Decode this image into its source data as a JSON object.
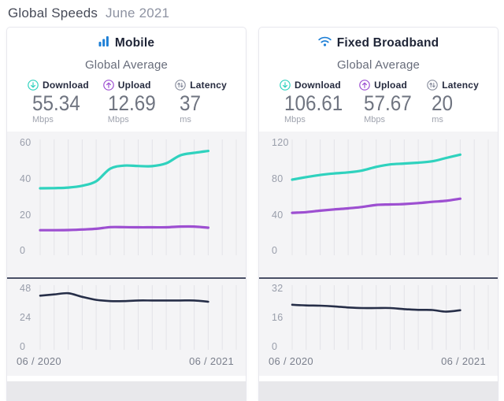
{
  "page": {
    "title": "Global Speeds",
    "subtitle": "June 2021"
  },
  "colors": {
    "brand_blue": "#1d7fd6",
    "download_teal": "#2fd2be",
    "upload_purple": "#9d4fd1",
    "latency_navy": "#262e48",
    "grid": "#e3e3e8",
    "chart_bg": "#f4f4f6",
    "divider": "#4a5066"
  },
  "cards": [
    {
      "title": "Mobile",
      "icon": "signal-bars-icon",
      "section_title": "Global Average",
      "stats": [
        {
          "icon": "download-arrow-icon",
          "label": "Download",
          "value": "55.34",
          "unit": "Mbps",
          "color": "#2fd2be"
        },
        {
          "icon": "upload-arrow-icon",
          "label": "Upload",
          "value": "12.69",
          "unit": "Mbps",
          "color": "#9d4fd1"
        },
        {
          "icon": "latency-arrows-icon",
          "label": "Latency",
          "value": "37",
          "unit": "ms",
          "color": "#8b90a0"
        }
      ],
      "x_axis": {
        "start": "06 / 2020",
        "end": "06 / 2021"
      }
    },
    {
      "title": "Fixed Broadband",
      "icon": "wifi-icon",
      "section_title": "Global Average",
      "stats": [
        {
          "icon": "download-arrow-icon",
          "label": "Download",
          "value": "106.61",
          "unit": "Mbps",
          "color": "#2fd2be"
        },
        {
          "icon": "upload-arrow-icon",
          "label": "Upload",
          "value": "57.67",
          "unit": "Mbps",
          "color": "#9d4fd1"
        },
        {
          "icon": "latency-arrows-icon",
          "label": "Latency",
          "value": "20",
          "unit": "ms",
          "color": "#8b90a0"
        }
      ],
      "x_axis": {
        "start": "06 / 2020",
        "end": "06 / 2021"
      }
    }
  ],
  "chart_data": [
    {
      "id": "mobile-speeds",
      "type": "line",
      "x": [
        "2020-06",
        "2020-07",
        "2020-08",
        "2020-09",
        "2020-10",
        "2020-11",
        "2020-12",
        "2021-01",
        "2021-02",
        "2021-03",
        "2021-04",
        "2021-05",
        "2021-06"
      ],
      "series": [
        {
          "name": "Download",
          "color": "#2fd2be",
          "values": [
            34.6,
            34.7,
            35.0,
            36.0,
            38.5,
            45.5,
            47.2,
            47.0,
            46.9,
            48.5,
            52.9,
            54.3,
            55.34
          ]
        },
        {
          "name": "Upload",
          "color": "#9d4fd1",
          "values": [
            11.3,
            11.3,
            11.4,
            11.7,
            12.1,
            13.0,
            13.0,
            12.9,
            12.9,
            12.9,
            13.3,
            13.3,
            12.69
          ]
        }
      ],
      "yticks": [
        0,
        20,
        40,
        60
      ],
      "ylim": [
        0,
        60
      ],
      "grid": "vertical-monthly",
      "legend": "none",
      "ylabel": "Mbps"
    },
    {
      "id": "mobile-latency",
      "type": "line",
      "x": [
        "2020-06",
        "2020-07",
        "2020-08",
        "2020-09",
        "2020-10",
        "2020-11",
        "2020-12",
        "2021-01",
        "2021-02",
        "2021-03",
        "2021-04",
        "2021-05",
        "2021-06"
      ],
      "series": [
        {
          "name": "Latency",
          "color": "#262e48",
          "values": [
            42,
            43,
            44,
            41,
            38.5,
            37.5,
            37.5,
            38,
            38,
            38,
            38,
            38,
            37
          ]
        }
      ],
      "yticks": [
        0,
        24,
        48
      ],
      "ylim": [
        0,
        48
      ],
      "grid": "vertical-monthly",
      "legend": "none",
      "ylabel": "ms"
    },
    {
      "id": "fixed-speeds",
      "type": "line",
      "x": [
        "2020-06",
        "2020-07",
        "2020-08",
        "2020-09",
        "2020-10",
        "2020-11",
        "2020-12",
        "2021-01",
        "2021-02",
        "2021-03",
        "2021-04",
        "2021-05",
        "2021-06"
      ],
      "series": [
        {
          "name": "Download",
          "color": "#2fd2be",
          "values": [
            78.8,
            81.6,
            84.0,
            85.7,
            86.9,
            89.0,
            93.0,
            95.7,
            96.7,
            97.7,
            99.2,
            102.9,
            106.61
          ]
        },
        {
          "name": "Upload",
          "color": "#9d4fd1",
          "values": [
            41.9,
            42.7,
            44.3,
            45.7,
            46.9,
            48.4,
            50.7,
            51.2,
            51.7,
            52.7,
            54.1,
            55.3,
            57.67
          ]
        }
      ],
      "yticks": [
        0,
        40,
        80,
        120
      ],
      "ylim": [
        0,
        120
      ],
      "grid": "vertical-monthly",
      "legend": "none",
      "ylabel": "Mbps"
    },
    {
      "id": "fixed-latency",
      "type": "line",
      "x": [
        "2020-06",
        "2020-07",
        "2020-08",
        "2020-09",
        "2020-10",
        "2020-11",
        "2020-12",
        "2021-01",
        "2021-02",
        "2021-03",
        "2021-04",
        "2021-05",
        "2021-06"
      ],
      "series": [
        {
          "name": "Latency",
          "color": "#262e48",
          "values": [
            23,
            22.6,
            22.5,
            22.1,
            21.5,
            21.2,
            21.2,
            21.2,
            20.6,
            20.2,
            20.1,
            19.2,
            20
          ]
        }
      ],
      "yticks": [
        0,
        16,
        32
      ],
      "ylim": [
        0,
        32
      ],
      "grid": "vertical-monthly",
      "legend": "none",
      "ylabel": "ms"
    }
  ]
}
